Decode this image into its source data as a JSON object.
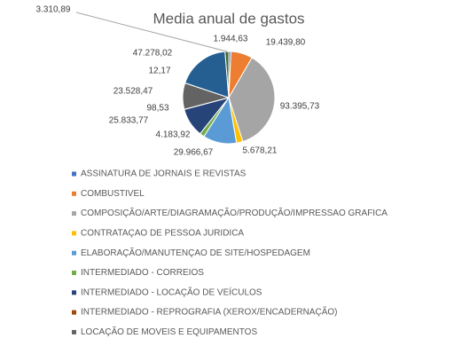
{
  "chart_data": {
    "type": "pie",
    "title": "Media anual de gastos",
    "categories": [
      "ASSINATURA DE JORNAIS E REVISTAS",
      "COMBUSTIVEL",
      "COMPOSIÇÃO/ARTE/DIAGRAMAÇÃO/PRODUÇÃO/IMPRESSAO GRAFICA",
      "CONTRATAÇAO DE PESSOA JURIDICA",
      "ELABORAÇÃO/MANUTENÇAO DE SITE/HOSPEDAGEM",
      "INTERMEDIADO - CORREIOS",
      "INTERMEDIADO - LOCAÇÃO DE VEÍCULOS",
      "INTERMEDIADO - REPROGRAFIA (XEROX/ENCADERNAÇÃO)",
      "LOCAÇÃO DE MOVEIS E EQUIPAMENTOS",
      null,
      null,
      null
    ],
    "values": [
      1944.63,
      19439.8,
      93395.73,
      5678.21,
      29966.67,
      4183.92,
      25833.77,
      98.53,
      23528.47,
      12.17,
      47278.02,
      3310.89
    ],
    "value_labels": [
      "1.944,63",
      "19.439,80",
      "93.395,73",
      "5.678,21",
      "29.966,67",
      "4.183,92",
      "25.833,77",
      "98,53",
      "23.528,47",
      "12,17",
      "47.278,02",
      "3.310,89"
    ],
    "colors": [
      "#4472c4",
      "#ed7d31",
      "#a5a5a5",
      "#ffc000",
      "#5b9bd5",
      "#70ad47",
      "#264478",
      "#9e480e",
      "#636363",
      "#997300",
      "#255e91",
      "#43682b"
    ]
  }
}
